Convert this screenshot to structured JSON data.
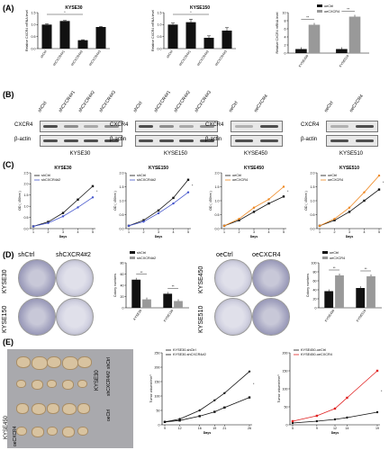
{
  "panel_labels": {
    "a": "(A)",
    "b": "(B)",
    "c": "(C)",
    "d": "(D)",
    "e": "(E)"
  },
  "colors": {
    "ctrl": "#111111",
    "sh": "#4455cc",
    "oe": "#ee8822",
    "oe_red": "#e02020",
    "bar_black": "#111111",
    "bar_grey": "#999999"
  },
  "panel_a": {
    "chart_data": [
      {
        "type": "bar",
        "title": "KYSE30",
        "ylabel": "Relative CXCR4 mRNA level",
        "categories": [
          "shCtrl",
          "shCXCR4#1",
          "shCXCR4#2",
          "shCXCR4#3"
        ],
        "values": [
          1.0,
          1.15,
          0.35,
          0.9
        ],
        "errors": [
          0.03,
          0.02,
          0.02,
          0.02
        ],
        "ylim": [
          0,
          1.5
        ],
        "yticks": [
          "0.0",
          "0.5",
          "1.0",
          "1.5"
        ]
      },
      {
        "type": "bar",
        "title": "KYSE150",
        "ylabel": "Relative CXCR4 mRNA level",
        "categories": [
          "shCtrl",
          "shCXCR4#1",
          "shCXCR4#2",
          "shCXCR4#3"
        ],
        "values": [
          1.0,
          1.1,
          0.45,
          0.75
        ],
        "errors": [
          0.06,
          0.12,
          0.08,
          0.12
        ],
        "ylim": [
          0,
          1.5
        ],
        "yticks": [
          "0.0",
          "0.5",
          "1.0",
          "1.5"
        ]
      },
      {
        "type": "bar",
        "ylabel": "Relative CXCR4 mRNA level",
        "categories": [
          "KYSE450",
          "KYSE510"
        ],
        "series": [
          {
            "name": "oeCtrl",
            "values": [
              1.0,
              1.0
            ]
          },
          {
            "name": "oeCXCR4",
            "values": [
              7.0,
              9.0
            ]
          }
        ],
        "ylim": [
          0,
          10
        ],
        "yticks": [
          "0",
          "2",
          "4",
          "6",
          "8",
          "10"
        ],
        "sig": [
          "**",
          "**"
        ]
      }
    ]
  },
  "panel_b": {
    "blots": [
      {
        "cell": "KYSE30",
        "headers": [
          "shCtrl",
          "shCXCR4#1",
          "shCXCR4#2",
          "shCXCR4#3"
        ],
        "rows": [
          "CXCR4",
          "β-actin"
        ]
      },
      {
        "cell": "KYSE150",
        "headers": [
          "shCtrl",
          "shCXCR4#1",
          "shCXCR4#2",
          "shCXCR4#3"
        ],
        "rows": [
          "CXCR4",
          "β-actin"
        ]
      },
      {
        "cell": "KYSE450",
        "headers": [
          "oeCtrl",
          "oeCXCR4"
        ],
        "rows": [
          "CXCR4",
          "β-actin"
        ]
      },
      {
        "cell": "KYSE510",
        "headers": [
          "oeCtrl",
          "oeCXCR4"
        ],
        "rows": [
          "CXCR4",
          "β-actin"
        ]
      }
    ]
  },
  "panel_c": {
    "chart_data": [
      {
        "type": "line",
        "title": "KYSE30",
        "xlabel": "Days",
        "ylabel": "OD ( 450nm )",
        "x": [
          1,
          2,
          3,
          4,
          5
        ],
        "series": [
          {
            "name": "shCtrl",
            "values": [
              0.1,
              0.3,
              0.7,
              1.3,
              1.9
            ]
          },
          {
            "name": "shCXCR4#2",
            "values": [
              0.1,
              0.25,
              0.55,
              0.95,
              1.4
            ]
          }
        ],
        "ylim": [
          0,
          2.5
        ],
        "yticks": [
          "0.0",
          "0.5",
          "1.0",
          "1.5",
          "2.0",
          "2.5"
        ],
        "sig": "*"
      },
      {
        "type": "line",
        "title": "KYSE150",
        "xlabel": "Days",
        "ylabel": "OD ( 450nm )",
        "x": [
          1,
          2,
          3,
          4,
          5
        ],
        "series": [
          {
            "name": "shCtrl",
            "values": [
              0.1,
              0.3,
              0.65,
              1.1,
              1.75
            ]
          },
          {
            "name": "shCXCR4#2",
            "values": [
              0.1,
              0.25,
              0.55,
              0.9,
              1.3
            ]
          }
        ],
        "ylim": [
          0,
          2.0
        ],
        "yticks": [
          "0.0",
          "0.5",
          "1.0",
          "1.5",
          "2.0"
        ],
        "sig": "*"
      },
      {
        "type": "line",
        "title": "KYSE450",
        "xlabel": "Days",
        "ylabel": "OD ( 450nm )",
        "x": [
          1,
          2,
          3,
          4,
          5
        ],
        "series": [
          {
            "name": "oeCtrl",
            "values": [
              0.1,
              0.3,
              0.6,
              0.9,
              1.15
            ]
          },
          {
            "name": "oeCXCR4",
            "values": [
              0.1,
              0.35,
              0.75,
              1.05,
              1.5
            ]
          }
        ],
        "ylim": [
          0,
          2.0
        ],
        "yticks": [
          "0.0",
          "0.5",
          "1.0",
          "1.5",
          "2.0"
        ],
        "sig": "*"
      },
      {
        "type": "line",
        "title": "KYSE510",
        "xlabel": "Days",
        "ylabel": "OD ( 450nm )",
        "x": [
          1,
          2,
          3,
          4,
          5
        ],
        "series": [
          {
            "name": "oeCtrl",
            "values": [
              0.1,
              0.3,
              0.6,
              1.0,
              1.4
            ]
          },
          {
            "name": "oeCXCR4",
            "values": [
              0.1,
              0.35,
              0.75,
              1.3,
              1.9
            ]
          }
        ],
        "ylim": [
          0,
          2.0
        ],
        "yticks": [
          "0.0",
          "0.5",
          "1.0",
          "1.5",
          "2.0"
        ],
        "sig": "*"
      }
    ]
  },
  "panel_d": {
    "left_headers": [
      "shCtrl",
      "shCXCR4#2"
    ],
    "left_rows": [
      "KYSE30",
      "KYSE150"
    ],
    "right_headers": [
      "oeCtrl",
      "oeCXCR4"
    ],
    "right_rows": [
      "KYSE450",
      "KYSE510"
    ],
    "chart_data": [
      {
        "type": "bar",
        "ylabel": "Colony numbers",
        "categories": [
          "KYSE30",
          "KYSE150"
        ],
        "series": [
          {
            "name": "shCtrl",
            "values": [
              50,
              25
            ]
          },
          {
            "name": "shCXCR4#2",
            "values": [
              15,
              12
            ]
          }
        ],
        "ylim": [
          0,
          80
        ],
        "yticks": [
          "0",
          "20",
          "40",
          "60",
          "80"
        ],
        "sig": [
          "**",
          "**"
        ]
      },
      {
        "type": "bar",
        "ylabel": "Colony numbers",
        "categories": [
          "KYSE450",
          "KYSE510"
        ],
        "series": [
          {
            "name": "oeCtrl",
            "values": [
              37,
              44
            ]
          },
          {
            "name": "oeCXCR4",
            "values": [
              72,
              70
            ]
          }
        ],
        "ylim": [
          0,
          100
        ],
        "yticks": [
          "0",
          "20",
          "40",
          "60",
          "80",
          "100"
        ],
        "sig": [
          "**",
          "**"
        ]
      }
    ]
  },
  "panel_e": {
    "tumor_labels": {
      "group1": "KYSE30",
      "group2": "KYSE450",
      "sub1a": "shCtrl",
      "sub1b": "shCXCR4#2",
      "sub2a": "oeCtrl",
      "sub2b": "oeCXCR4"
    },
    "chart_data": [
      {
        "type": "line",
        "xlabel": "Days",
        "ylabel": "Tumor volume/mm³",
        "x": [
          9,
          12,
          16,
          19,
          21,
          26
        ],
        "series": [
          {
            "name": "KYSE30-shCtrl",
            "values": [
              10,
              20,
              50,
              85,
              110,
              185
            ]
          },
          {
            "name": "KYSE30-shCXCR4#2",
            "values": [
              10,
              15,
              30,
              45,
              60,
              95
            ]
          }
        ],
        "ylim": [
          0,
          250
        ],
        "yticks": [
          "0",
          "50",
          "100",
          "150",
          "200",
          "250"
        ],
        "xticks": [
          "9",
          "12",
          "16",
          "19",
          "21",
          "26"
        ],
        "sig": "*"
      },
      {
        "type": "line",
        "xlabel": "Days",
        "ylabel": "Tumor volume/mm³",
        "x": [
          5,
          9,
          12,
          14,
          19
        ],
        "series": [
          {
            "name": "KYSE450-oeCtrl",
            "values": [
              5,
              10,
              15,
              20,
              35
            ]
          },
          {
            "name": "KYSE450-oeCXCR4",
            "values": [
              10,
              25,
              45,
              75,
              150
            ]
          }
        ],
        "ylim": [
          0,
          200
        ],
        "yticks": [
          "0",
          "50",
          "100",
          "150",
          "200"
        ],
        "xticks": [
          "5",
          "9",
          "12",
          "14",
          "19"
        ],
        "sig": "*"
      }
    ]
  }
}
